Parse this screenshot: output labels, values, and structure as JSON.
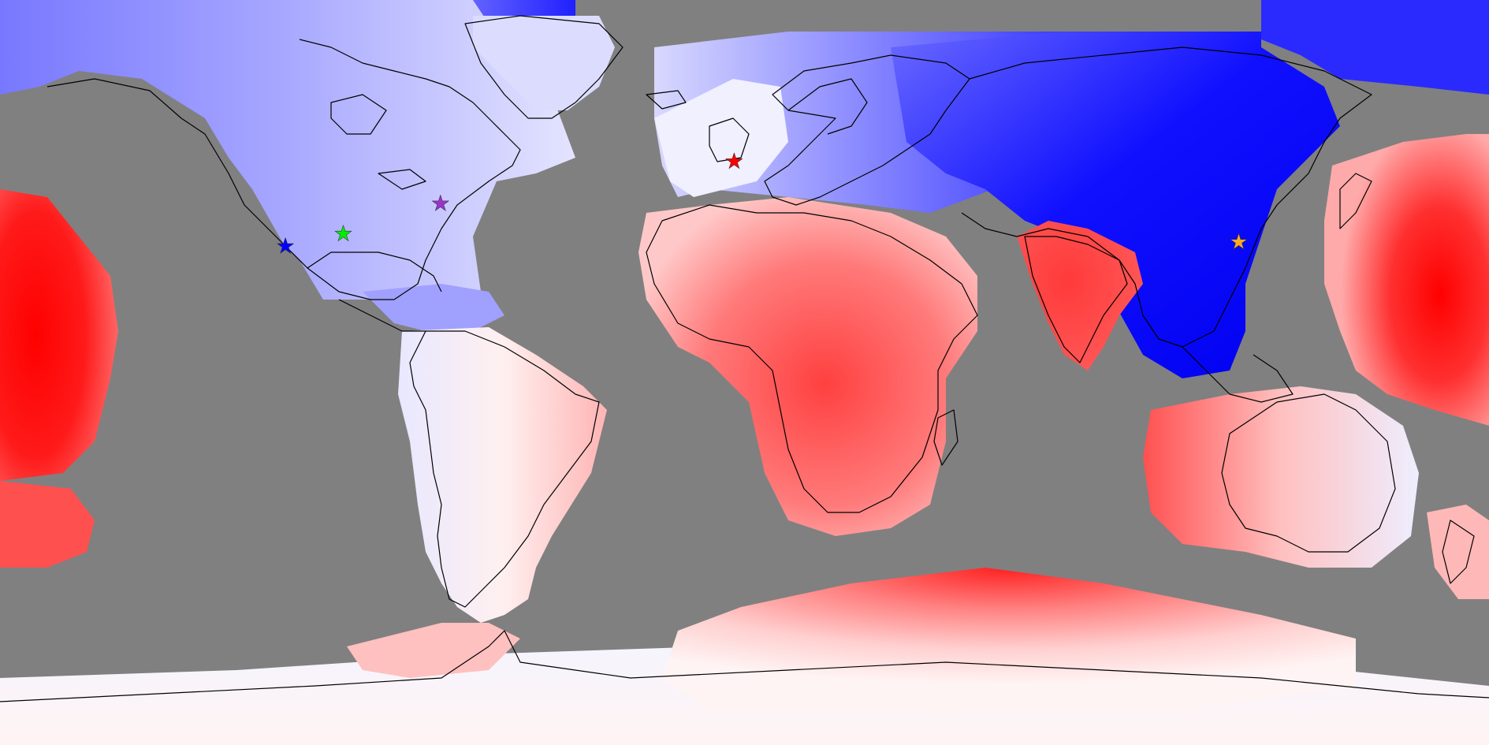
{
  "map": {
    "projection": "equirectangular",
    "background_color": "#808080",
    "coastline_color": "#000000",
    "color_scale": {
      "negative": "#0000ff",
      "neutral": "#ffffff",
      "positive": "#ff0000"
    },
    "markers": [
      {
        "name": "blue-star-marker",
        "color": "#0000ff",
        "lon": -111.0,
        "lat": 30.5
      },
      {
        "name": "green-star-marker",
        "color": "#00ee00",
        "lon": -97.0,
        "lat": 33.5
      },
      {
        "name": "purple-star-marker",
        "color": "#9933cc",
        "lon": -73.5,
        "lat": 40.8
      },
      {
        "name": "red-star-marker",
        "color": "#ff0000",
        "lon": -2.5,
        "lat": 51.0
      },
      {
        "name": "orange-star-marker",
        "color": "#ffaa22",
        "lon": 119.5,
        "lat": 31.5
      }
    ]
  }
}
